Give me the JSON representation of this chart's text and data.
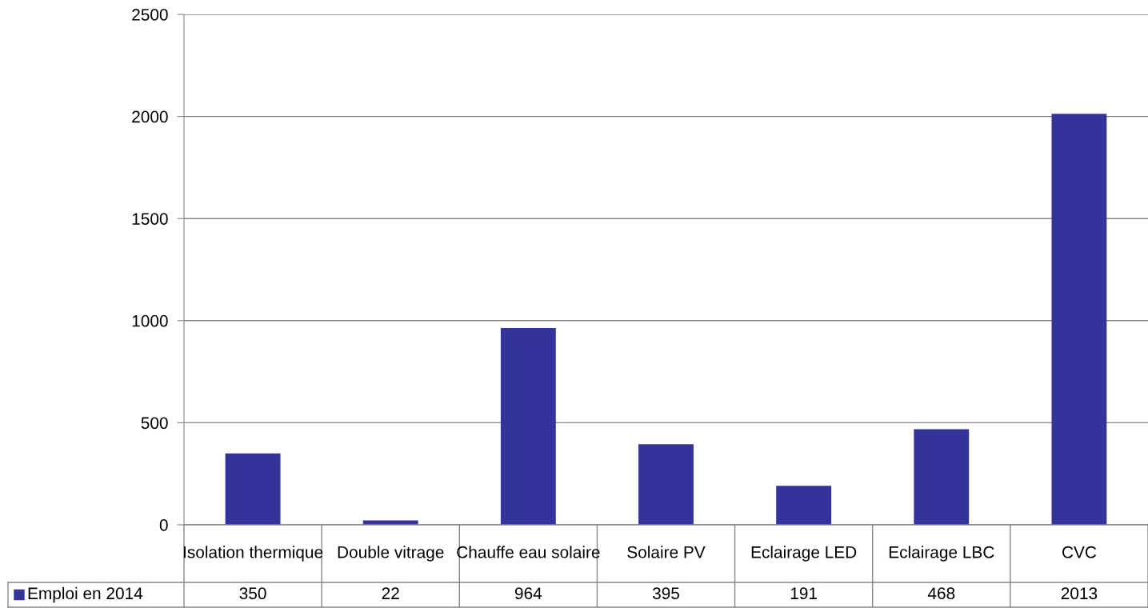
{
  "chart_data": {
    "type": "bar",
    "categories": [
      "Isolation thermique",
      "Double vitrage",
      "Chauffe eau solaire",
      "Solaire PV",
      "Eclairage LED",
      "Eclairage LBC",
      "CVC"
    ],
    "series": [
      {
        "name": "Emploi en 2014",
        "color": "#333399",
        "values": [
          350,
          22,
          964,
          395,
          191,
          468,
          2013
        ]
      }
    ],
    "ylim": [
      0,
      2500
    ],
    "yticks": [
      0,
      500,
      1000,
      1500,
      2000,
      2500
    ],
    "grid": "y",
    "data_labels": true,
    "legend": "bottom"
  }
}
